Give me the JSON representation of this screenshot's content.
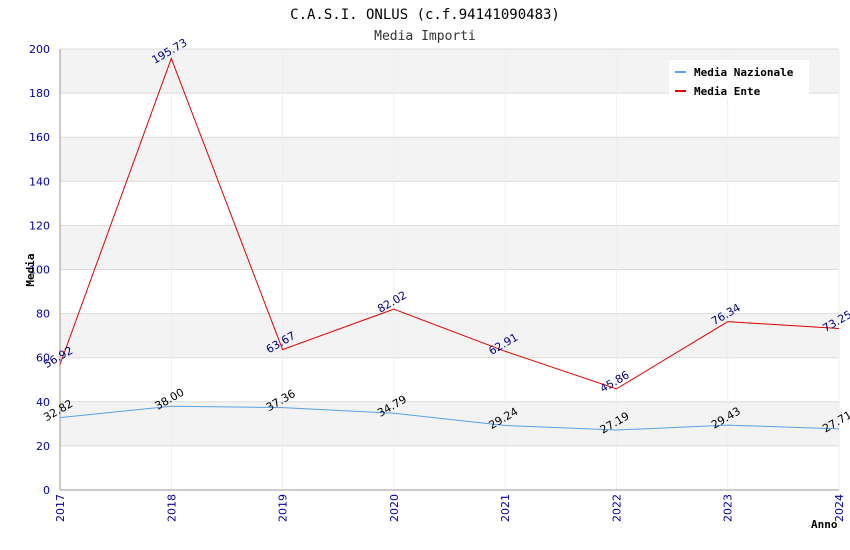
{
  "chart_data": {
    "type": "line",
    "title": "C.A.S.I. ONLUS (c.f.94141090483)",
    "subtitle": "Media Importi",
    "xlabel": "Anno",
    "ylabel": "Media",
    "categories": [
      "2017",
      "2018",
      "2019",
      "2020",
      "2021",
      "2022",
      "2023",
      "2024"
    ],
    "ylim": [
      0,
      200
    ],
    "yticks": [
      "0",
      "20",
      "40",
      "60",
      "80",
      "100",
      "120",
      "140",
      "160",
      "180",
      "200"
    ],
    "grid": true,
    "legend_position": "top-right",
    "series": [
      {
        "name": "Media Nazionale",
        "color": "#5aa0e6",
        "label_color": "#000000",
        "values": [
          32.82,
          38.0,
          37.36,
          34.79,
          29.24,
          27.19,
          29.43,
          27.71
        ],
        "labels": [
          "32.82",
          "38.00",
          "37.36",
          "34.79",
          "29.24",
          "27.19",
          "29.43",
          "27.71"
        ]
      },
      {
        "name": "Media Ente",
        "color": "#e00000",
        "label_color": "#000080",
        "values": [
          56.92,
          195.73,
          63.67,
          82.02,
          62.91,
          45.86,
          76.34,
          73.25
        ],
        "labels": [
          "56.92",
          "195.73",
          "63.67",
          "82.02",
          "62.91",
          "45.86",
          "76.34",
          "73.25"
        ]
      }
    ],
    "colors": {
      "axis_tick": "#0000aa",
      "band": "#f3f3f3",
      "grid": "#dcdcdc"
    }
  }
}
